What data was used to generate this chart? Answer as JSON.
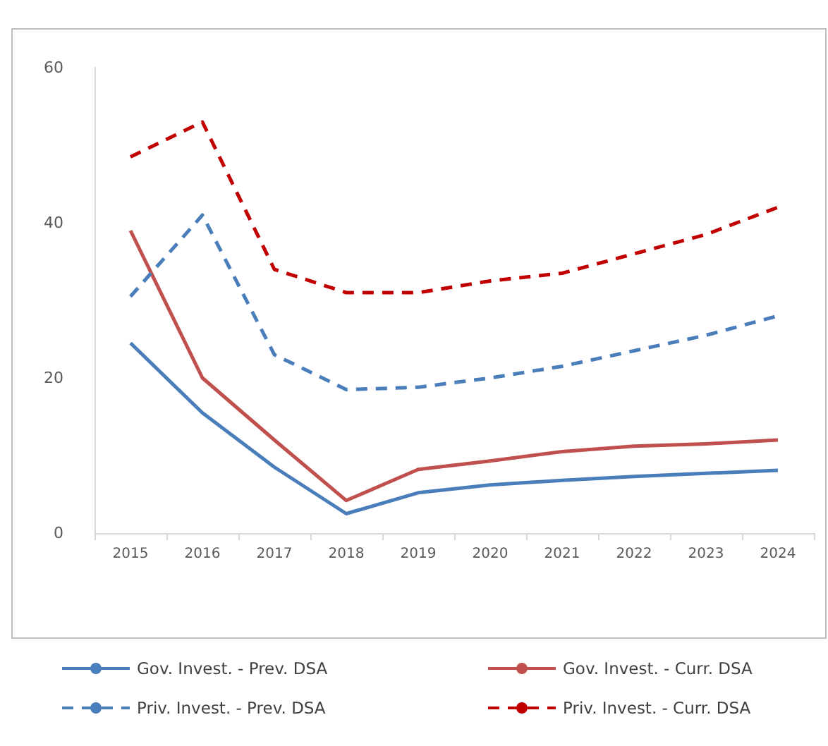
{
  "chart_data": {
    "type": "line",
    "categories": [
      "2015",
      "2016",
      "2017",
      "2018",
      "2019",
      "2020",
      "2021",
      "2022",
      "2023",
      "2024"
    ],
    "series": [
      {
        "name": "Gov. Invest. - Prev. DSA",
        "color": "#4a7ebb",
        "line_style": "solid",
        "values": [
          24.5,
          15.5,
          8.5,
          2.5,
          5.2,
          6.2,
          6.8,
          7.3,
          7.7,
          8.1
        ]
      },
      {
        "name": "Gov. Invest. - Curr. DSA",
        "color": "#c0504d",
        "line_style": "solid",
        "values": [
          39,
          20,
          12,
          4.2,
          8.2,
          9.3,
          10.5,
          11.2,
          11.5,
          12
        ]
      },
      {
        "name": "Priv. Invest. - Prev. DSA",
        "color": "#4a7ebb",
        "line_style": "dashed",
        "values": [
          30.5,
          41,
          23,
          18.5,
          18.8,
          20,
          21.5,
          23.5,
          25.5,
          28
        ]
      },
      {
        "name": "Priv. Invest. - Curr. DSA",
        "color": "#c00000",
        "line_style": "dashed",
        "values": [
          48.5,
          53,
          34,
          31,
          31,
          32.5,
          33.5,
          36,
          38.5,
          42
        ]
      }
    ],
    "ylim": [
      0,
      60
    ],
    "yticks": [
      0,
      20,
      40,
      60
    ],
    "grid": false,
    "legend": "bottom",
    "marker": "none"
  }
}
